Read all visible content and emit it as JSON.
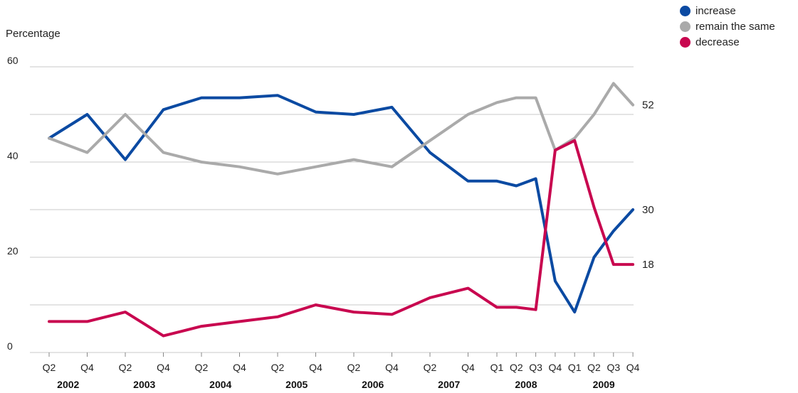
{
  "chart_data": {
    "type": "line",
    "ylabel": "Percentage",
    "ylim": [
      0,
      60
    ],
    "yticks": [
      "0",
      "20",
      "40",
      "60"
    ],
    "grid": true,
    "legend_position": "top-right",
    "x": [
      "Q2 2002",
      "Q4 2002",
      "Q2 2003",
      "Q4 2003",
      "Q2 2004",
      "Q4 2004",
      "Q2 2005",
      "Q4 2005",
      "Q2 2006",
      "Q4 2006",
      "Q2 2007",
      "Q4 2007",
      "Q1 2008",
      "Q2 2008",
      "Q3 2008",
      "Q4 2008",
      "Q1 2009",
      "Q2 2009",
      "Q3 2009",
      "Q4 2009"
    ],
    "xtick_labels": [
      "Q2",
      "Q4",
      "Q2",
      "Q4",
      "Q2",
      "Q4",
      "Q2",
      "Q4",
      "Q2",
      "Q4",
      "Q2",
      "Q4",
      "Q1",
      "Q2",
      "Q3",
      "Q4",
      "Q1",
      "Q2",
      "Q3",
      "Q4"
    ],
    "years": [
      {
        "label": "2002",
        "from": 0,
        "to": 1
      },
      {
        "label": "2003",
        "from": 2,
        "to": 3
      },
      {
        "label": "2004",
        "from": 4,
        "to": 5
      },
      {
        "label": "2005",
        "from": 6,
        "to": 7
      },
      {
        "label": "2006",
        "from": 8,
        "to": 9
      },
      {
        "label": "2007",
        "from": 10,
        "to": 11
      },
      {
        "label": "2008",
        "from": 12,
        "to": 15
      },
      {
        "label": "2009",
        "from": 16,
        "to": 19
      }
    ],
    "series": [
      {
        "name": "increase",
        "color": "#0b4aa2",
        "values": [
          45,
          50,
          40.5,
          51,
          53.5,
          53.5,
          54,
          50.5,
          50,
          51.5,
          42,
          36,
          36,
          35,
          36.5,
          15,
          8.5,
          20,
          25.5,
          30
        ],
        "end_label": "30"
      },
      {
        "name": "remain the same",
        "color": "#aaaaaa",
        "values": [
          45,
          42,
          50,
          42,
          40,
          39,
          37.5,
          39,
          40.5,
          39,
          44.5,
          50,
          52.5,
          53.5,
          53.5,
          42.5,
          45,
          50,
          56.5,
          52
        ],
        "end_label": "52"
      },
      {
        "name": "decrease",
        "color": "#c8064f",
        "values": [
          6.5,
          6.5,
          8.5,
          3.5,
          5.5,
          6.5,
          7.5,
          10,
          8.5,
          8,
          11.5,
          13.5,
          9.5,
          9.5,
          9,
          42.5,
          44.5,
          30.5,
          18.5,
          18.5
        ],
        "end_label": "18"
      }
    ]
  }
}
